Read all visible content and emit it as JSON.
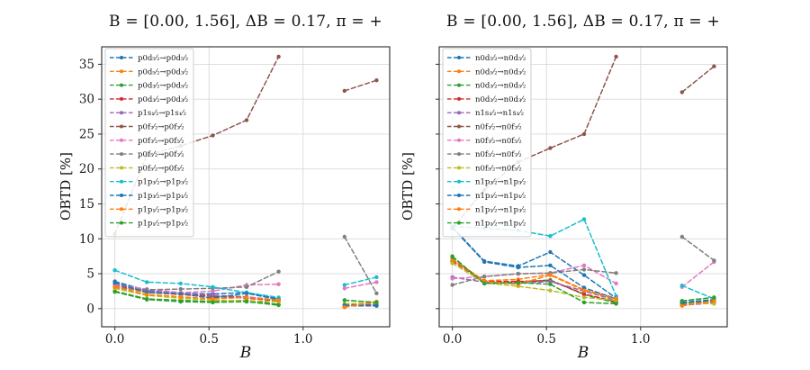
{
  "chart_data": [
    {
      "id": "proton-obtd-panel",
      "type": "line",
      "title": "B = [0.00, 1.56], ΔB = 0.17, π = +",
      "xlabel": "B",
      "ylabel": "OBTD [%]",
      "xtick_labels": [
        "0.0",
        "0.5",
        "1.0"
      ],
      "xtick_values": [
        0.0,
        0.5,
        1.0
      ],
      "ytick_labels": [
        "0",
        "5",
        "10",
        "15",
        "20",
        "25",
        "30",
        "35"
      ],
      "ytick_values": [
        0,
        5,
        10,
        15,
        20,
        25,
        30,
        35
      ],
      "show_ytick_labels": true,
      "xlim": [
        -0.07,
        1.46
      ],
      "ylim": [
        -2.6,
        37.5
      ],
      "grid": true,
      "legend_position": "upper left",
      "line_style": "dashed",
      "marker": "circle",
      "x": [
        0.0,
        0.17,
        0.35,
        0.52,
        0.7,
        0.87,
        1.22,
        1.39
      ],
      "gap_between_x": [
        0.87,
        1.22
      ],
      "series": [
        {
          "name": "p0d₅⁄₂→p0d₅⁄₂",
          "color": "#1f77b4",
          "values": [
            3.9,
            2.6,
            2.2,
            2.1,
            2.3,
            1.4,
            0.4,
            0.4
          ]
        },
        {
          "name": "p0d₅⁄₂→p0d₃⁄₂",
          "color": "#ff7f0e",
          "values": [
            3.2,
            2.3,
            2.0,
            1.7,
            1.6,
            1.2,
            0.2,
            1.0
          ]
        },
        {
          "name": "p0d₃⁄₂→p0d₅⁄₂",
          "color": "#2ca02c",
          "values": [
            2.5,
            1.4,
            1.2,
            1.0,
            1.2,
            0.6,
            1.2,
            0.9
          ]
        },
        {
          "name": "p0d₃⁄₂→p0d₃⁄₂",
          "color": "#d62728",
          "values": [
            3.4,
            2.4,
            2.1,
            1.8,
            1.5,
            1.1,
            0.5,
            0.6
          ]
        },
        {
          "name": "p1s₁⁄₂→p1s₁⁄₂",
          "color": "#9467bd",
          "values": [
            3.6,
            2.5,
            2.2,
            1.9,
            1.7,
            1.2,
            0.4,
            0.5
          ]
        },
        {
          "name": "p0f₇⁄₂→p0f₇⁄₂",
          "color": "#8c564b",
          "values": [
            10.7,
            22.0,
            23.3,
            24.8,
            27.0,
            36.1,
            31.2,
            32.7
          ]
        },
        {
          "name": "p0f₇⁄₂→p0f₅⁄₂",
          "color": "#e377c2",
          "values": [
            3.4,
            2.8,
            2.3,
            2.5,
            3.4,
            3.5,
            2.9,
            3.8
          ]
        },
        {
          "name": "p0f₅⁄₂→p0f₇⁄₂",
          "color": "#7f7f7f",
          "values": [
            3.0,
            2.7,
            2.8,
            2.9,
            3.1,
            5.3,
            10.3,
            2.2
          ]
        },
        {
          "name": "p0f₅⁄₂→p0f₅⁄₂",
          "color": "#bcbd22",
          "values": [
            2.9,
            1.9,
            1.5,
            1.2,
            1.1,
            1.0,
            0.7,
            0.8
          ]
        },
        {
          "name": "p1p₃⁄₂→p1p₃⁄₂",
          "color": "#17becf",
          "values": [
            5.5,
            3.8,
            3.6,
            3.1,
            2.3,
            1.6,
            3.4,
            4.5
          ]
        },
        {
          "name": "p1p₃⁄₂→p1p₁⁄₂",
          "color": "#1f77b4",
          "values": [
            3.7,
            2.3,
            2.1,
            1.5,
            2.2,
            1.3,
            0.5,
            0.4
          ]
        },
        {
          "name": "p1p₁⁄₂→p1p₃⁄₂",
          "color": "#ff7f0e",
          "values": [
            3.1,
            2.0,
            1.7,
            1.4,
            1.6,
            1.2,
            0.2,
            1.0
          ]
        },
        {
          "name": "p1p₁⁄₂→p1p₁⁄₂",
          "color": "#2ca02c",
          "values": [
            2.4,
            1.3,
            1.0,
            0.9,
            1.0,
            0.5,
            1.2,
            0.9
          ]
        }
      ]
    },
    {
      "id": "neutron-obtd-panel",
      "type": "line",
      "title": "B = [0.00, 1.56], ΔB = 0.17, π = +",
      "xlabel": "B",
      "ylabel": "OBTD [%]",
      "xtick_labels": [
        "0.0",
        "0.5",
        "1.0"
      ],
      "xtick_values": [
        0.0,
        0.5,
        1.0
      ],
      "ytick_labels": [],
      "ytick_values": [
        0,
        5,
        10,
        15,
        20,
        25,
        30,
        35
      ],
      "show_ytick_labels": false,
      "xlim": [
        -0.07,
        1.46
      ],
      "ylim": [
        -2.6,
        37.5
      ],
      "grid": true,
      "legend_position": "upper left",
      "line_style": "dashed",
      "marker": "circle",
      "x": [
        0.0,
        0.17,
        0.35,
        0.52,
        0.7,
        0.87,
        1.22,
        1.39
      ],
      "gap_between_x": [
        0.87,
        1.22
      ],
      "series": [
        {
          "name": "n0d₅⁄₂→n0d₅⁄₂",
          "color": "#1f77b4",
          "values": [
            11.7,
            6.8,
            6.1,
            8.1,
            4.8,
            1.5,
            0.9,
            1.3
          ]
        },
        {
          "name": "n0d₅⁄₂→n0d₃⁄₂",
          "color": "#ff7f0e",
          "values": [
            7.1,
            4.0,
            4.2,
            4.9,
            2.7,
            1.5,
            0.5,
            1.2
          ]
        },
        {
          "name": "n0d₃⁄₂→n0d₅⁄₂",
          "color": "#2ca02c",
          "values": [
            7.5,
            3.6,
            3.8,
            4.1,
            2.0,
            0.8,
            1.1,
            1.6
          ]
        },
        {
          "name": "n0d₃⁄₂→n0d₃⁄₂",
          "color": "#d62728",
          "values": [
            6.8,
            3.9,
            3.9,
            4.0,
            2.1,
            1.0,
            0.6,
            1.0
          ]
        },
        {
          "name": "n1s₁⁄₂→n1s₁⁄₂",
          "color": "#9467bd",
          "values": [
            4.5,
            3.8,
            3.6,
            3.9,
            2.5,
            1.2,
            0.5,
            0.8
          ]
        },
        {
          "name": "n0f₇⁄₂→n0f₇⁄₂",
          "color": "#8c564b",
          "values": [
            11.5,
            17.0,
            21.0,
            23.0,
            25.0,
            36.1,
            31.0,
            34.7
          ]
        },
        {
          "name": "n0f₇⁄₂→n0f₅⁄₂",
          "color": "#e377c2",
          "values": [
            4.3,
            4.6,
            5.0,
            5.1,
            6.2,
            3.6,
            3.1,
            6.7
          ]
        },
        {
          "name": "n0f₅⁄₂→n0f₇⁄₂",
          "color": "#7f7f7f",
          "values": [
            3.4,
            4.6,
            5.0,
            5.1,
            5.6,
            5.1,
            10.3,
            6.9
          ]
        },
        {
          "name": "n0f₅⁄₂→n0f₅⁄₂",
          "color": "#bcbd22",
          "values": [
            6.5,
            3.7,
            3.2,
            2.6,
            1.6,
            1.2,
            0.8,
            0.7
          ]
        },
        {
          "name": "n1p₃⁄₂→n1p₃⁄₂",
          "color": "#17becf",
          "values": [
            11.8,
            11.5,
            11.2,
            10.4,
            12.8,
            1.8,
            3.3,
            1.4
          ]
        },
        {
          "name": "n1p₃⁄₂→n1p₁⁄₂",
          "color": "#1f77b4",
          "values": [
            11.6,
            6.7,
            5.9,
            6.2,
            3.0,
            1.4,
            0.8,
            1.2
          ]
        },
        {
          "name": "n1p₁⁄₂→n1p₃⁄₂",
          "color": "#ff7f0e",
          "values": [
            7.0,
            3.9,
            3.5,
            4.8,
            2.6,
            1.4,
            0.4,
            1.1
          ]
        },
        {
          "name": "n1p₁⁄₂→n1p₁⁄₂",
          "color": "#2ca02c",
          "values": [
            7.4,
            3.6,
            3.7,
            3.5,
            0.9,
            0.7,
            1.1,
            1.6
          ]
        }
      ]
    }
  ],
  "style": {
    "grid_color": "#d9d9d9",
    "frame_color": "#2b2b2b",
    "legend_border_color": "#cccccc",
    "legend_background": "#ffffff"
  }
}
